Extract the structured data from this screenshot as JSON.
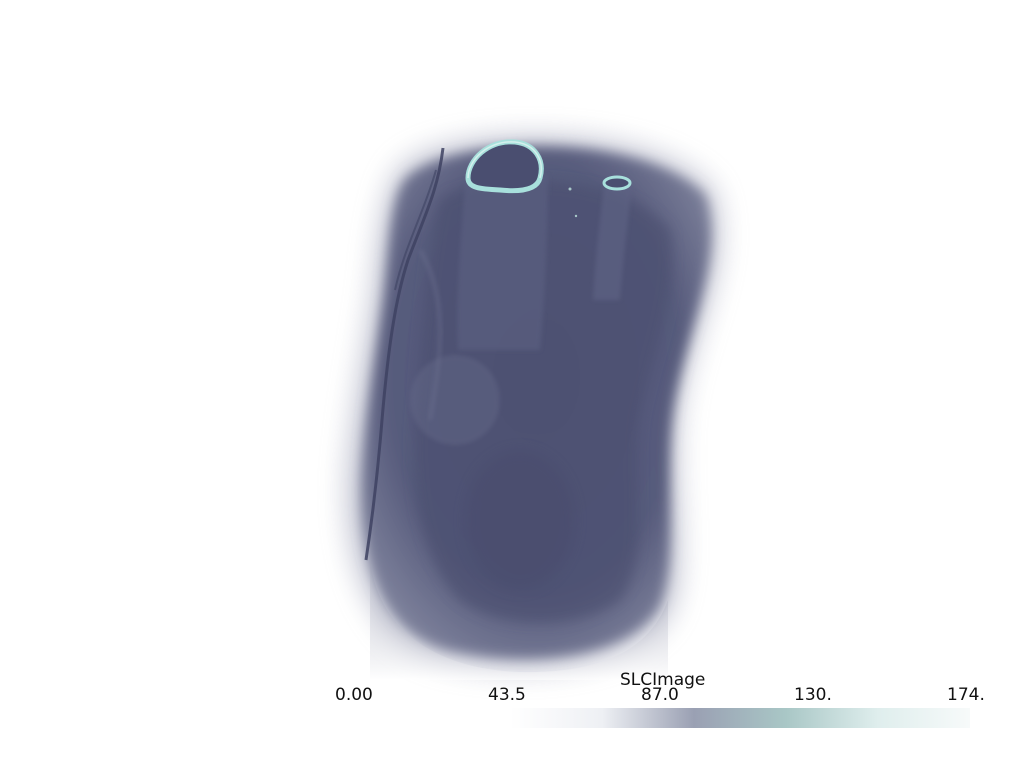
{
  "colormap": {
    "title": "SLCImage",
    "ticks": [
      "0.00",
      "43.5",
      "87.0",
      "130.",
      "174."
    ],
    "stops": [
      "#ffffff",
      "#eef0f4",
      "#9aa0b3",
      "#a9c7c6",
      "#dfeeed",
      "#f7fafa"
    ]
  },
  "scene": {
    "volume_color": "#4e5273",
    "highlight_color": "#a8e0dc"
  }
}
